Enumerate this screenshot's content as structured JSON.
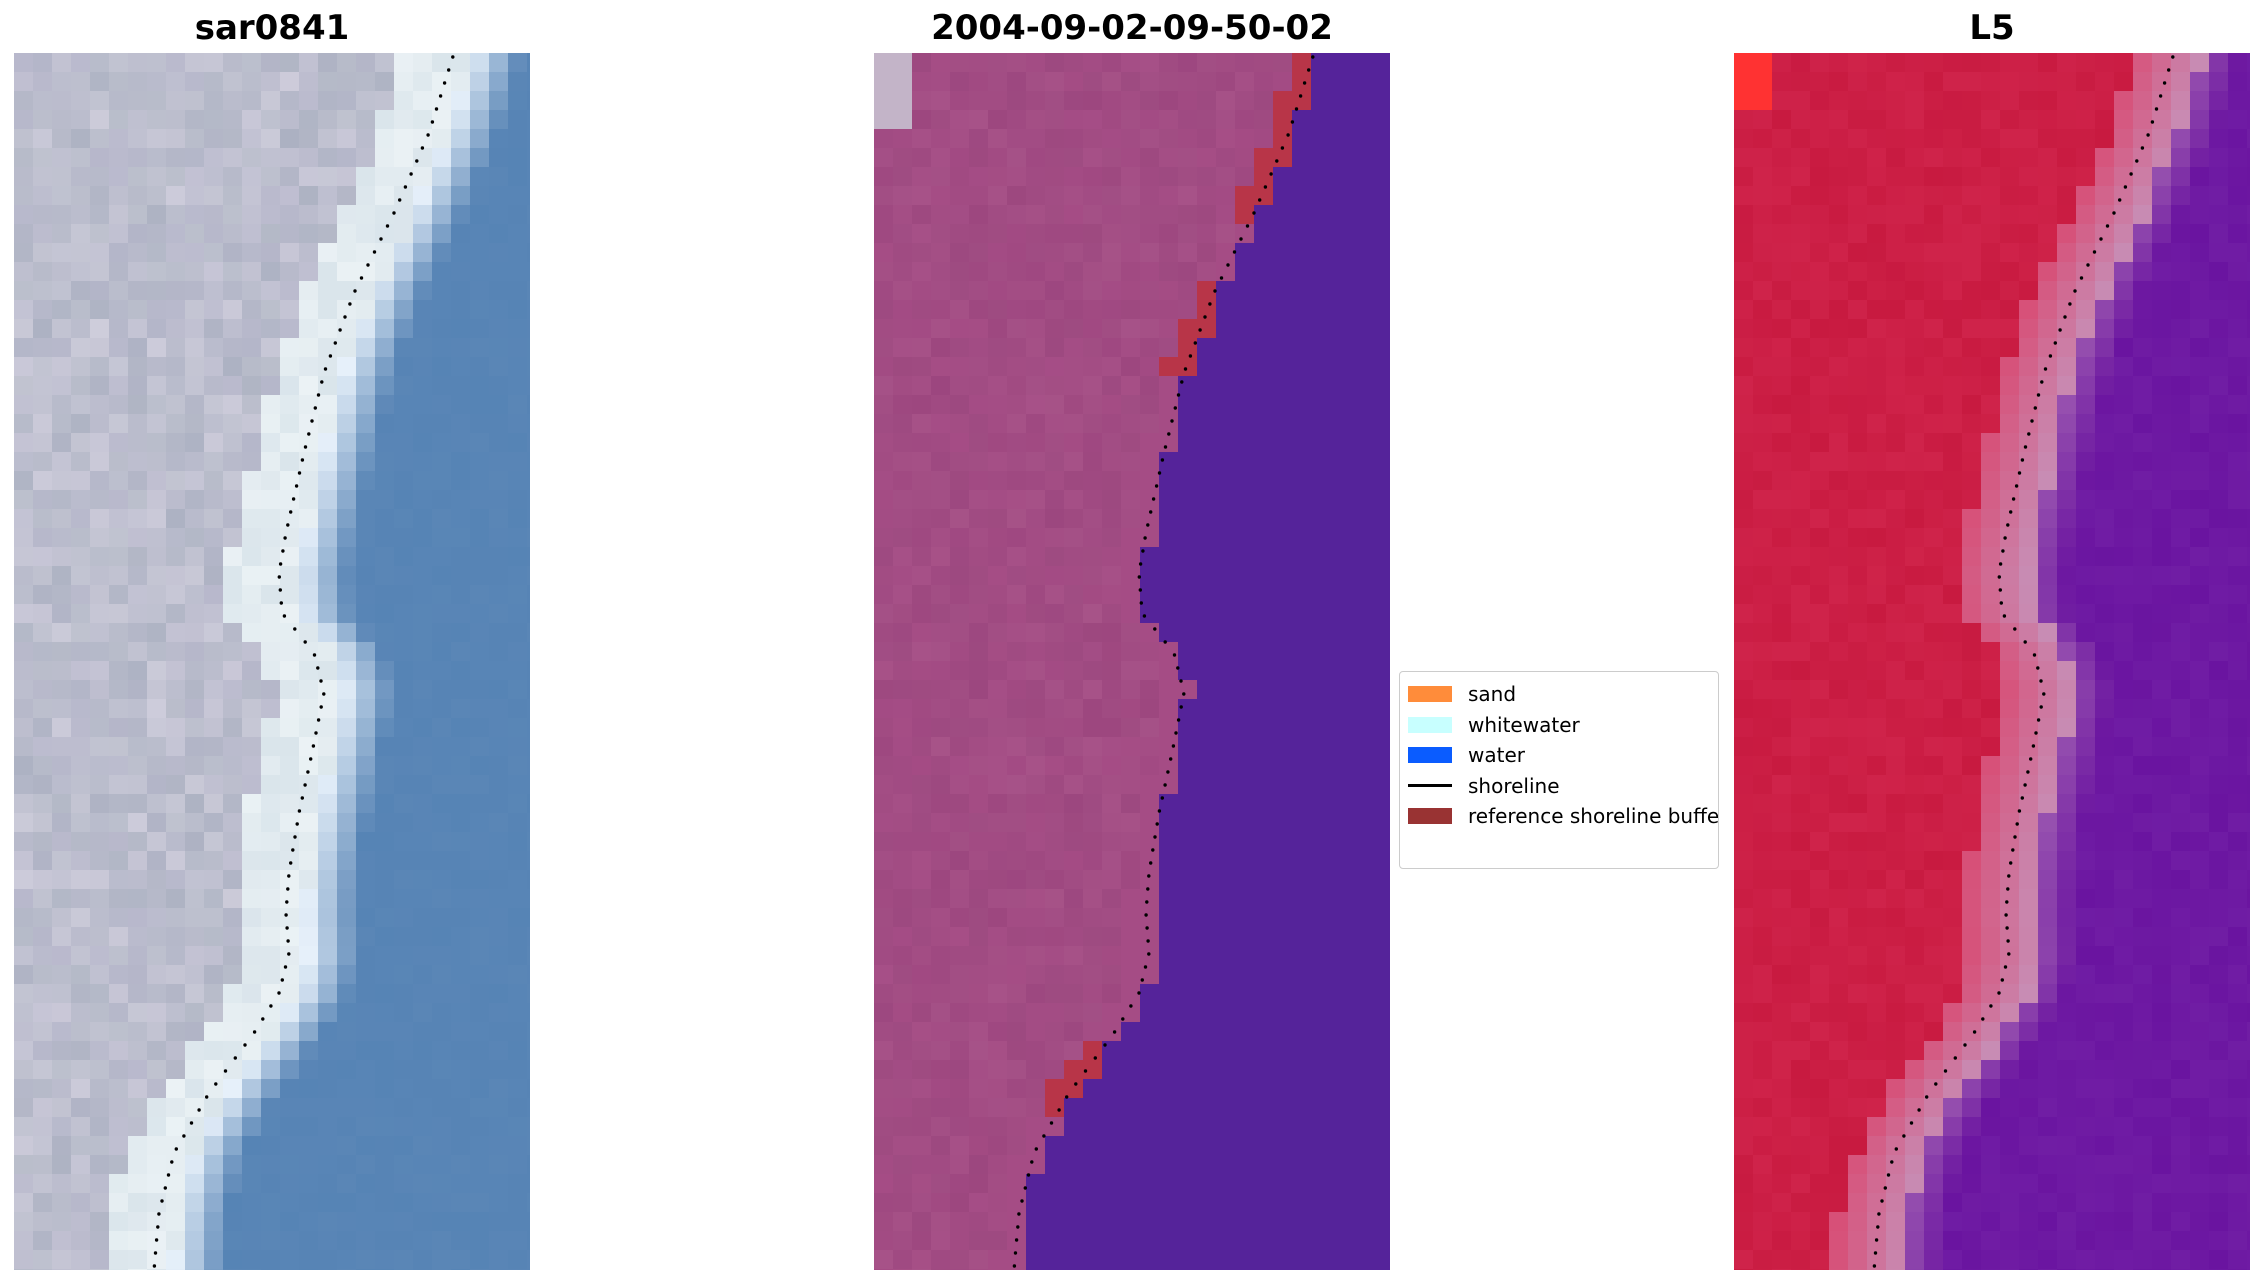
{
  "panels": [
    {
      "title": "sar0841",
      "style": "rgb"
    },
    {
      "title": "2004-09-02-09-50-02",
      "style": "classified"
    },
    {
      "title": "L5",
      "style": "falsecolor"
    }
  ],
  "legend": {
    "items": [
      {
        "label": "sand",
        "color": "#ff8c3a",
        "kind": "patch"
      },
      {
        "label": "whitewater",
        "color": "#c8ffff",
        "kind": "patch"
      },
      {
        "label": "water",
        "color": "#0a5cff",
        "kind": "patch"
      },
      {
        "label": "shoreline",
        "color": "#000000",
        "kind": "line"
      },
      {
        "label": "reference shoreline buffer",
        "color": "#993333",
        "kind": "patch"
      }
    ]
  },
  "colors": {
    "rgb_land": "#b8b8cc",
    "rgb_water": "#5a86b6",
    "classified_land": "#a54c85",
    "classified_water": "#55239a",
    "classified_buffer": "#b83548",
    "falsecolor_land": "#c81a40",
    "falsecolor_water": "#6a14a0",
    "shoreline": "#000000"
  }
}
